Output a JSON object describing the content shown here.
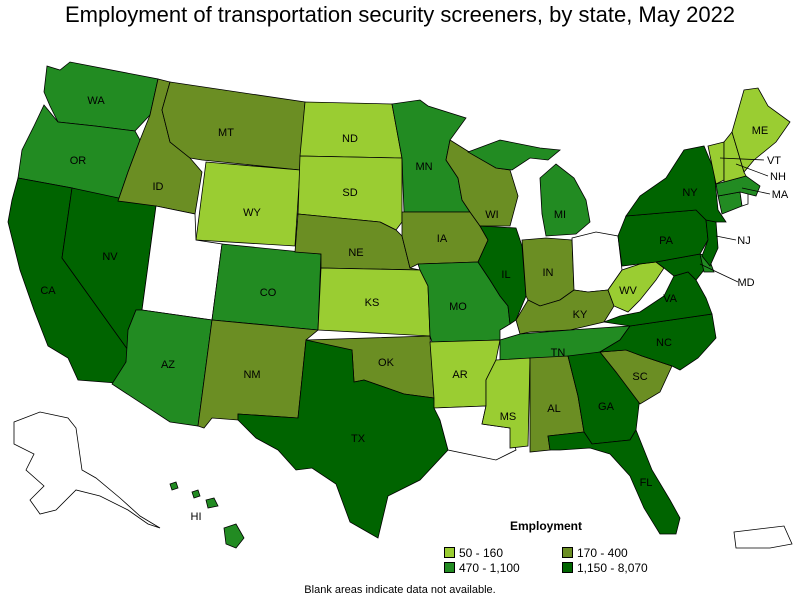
{
  "title": "Employment of transportation security screeners, by state, May 2022",
  "note": "Blank areas indicate data not available.",
  "legend": {
    "title": "Employment",
    "items": [
      {
        "label": "50 - 160",
        "color": "#9ACD32"
      },
      {
        "label": "170 - 400",
        "color": "#6B8E23"
      },
      {
        "label": "470 - 1,100",
        "color": "#228B22"
      },
      {
        "label": "1,150 - 8,070",
        "color": "#006400"
      }
    ]
  },
  "colors": {
    "na": "#ffffff",
    "outline": "#000000"
  },
  "states": [
    {
      "abbr": "WA",
      "cls": 2
    },
    {
      "abbr": "OR",
      "cls": 2
    },
    {
      "abbr": "CA",
      "cls": 3
    },
    {
      "abbr": "NV",
      "cls": 3
    },
    {
      "abbr": "ID",
      "cls": 1
    },
    {
      "abbr": "MT",
      "cls": 1
    },
    {
      "abbr": "WY",
      "cls": 0
    },
    {
      "abbr": "UT",
      "cls": null
    },
    {
      "abbr": "AZ",
      "cls": 2
    },
    {
      "abbr": "CO",
      "cls": 2
    },
    {
      "abbr": "NM",
      "cls": 1
    },
    {
      "abbr": "ND",
      "cls": 0
    },
    {
      "abbr": "SD",
      "cls": 0
    },
    {
      "abbr": "NE",
      "cls": 1
    },
    {
      "abbr": "KS",
      "cls": 0
    },
    {
      "abbr": "OK",
      "cls": 1
    },
    {
      "abbr": "TX",
      "cls": 3
    },
    {
      "abbr": "MN",
      "cls": 2
    },
    {
      "abbr": "IA",
      "cls": 1
    },
    {
      "abbr": "MO",
      "cls": 2
    },
    {
      "abbr": "AR",
      "cls": 0
    },
    {
      "abbr": "LA",
      "cls": null
    },
    {
      "abbr": "WI",
      "cls": 1
    },
    {
      "abbr": "IL",
      "cls": 3
    },
    {
      "abbr": "MI",
      "cls": 2
    },
    {
      "abbr": "IN",
      "cls": 1
    },
    {
      "abbr": "OH",
      "cls": null
    },
    {
      "abbr": "KY",
      "cls": 1
    },
    {
      "abbr": "TN",
      "cls": 2
    },
    {
      "abbr": "MS",
      "cls": 0
    },
    {
      "abbr": "AL",
      "cls": 1
    },
    {
      "abbr": "GA",
      "cls": 3
    },
    {
      "abbr": "FL",
      "cls": 3
    },
    {
      "abbr": "SC",
      "cls": 1
    },
    {
      "abbr": "NC",
      "cls": 3
    },
    {
      "abbr": "VA",
      "cls": 3
    },
    {
      "abbr": "WV",
      "cls": 0
    },
    {
      "abbr": "PA",
      "cls": 3
    },
    {
      "abbr": "NY",
      "cls": 3
    },
    {
      "abbr": "VT",
      "cls": 0
    },
    {
      "abbr": "NH",
      "cls": 0
    },
    {
      "abbr": "ME",
      "cls": 0
    },
    {
      "abbr": "MA",
      "cls": 2
    },
    {
      "abbr": "RI",
      "cls": null
    },
    {
      "abbr": "CT",
      "cls": 2
    },
    {
      "abbr": "NJ",
      "cls": 3
    },
    {
      "abbr": "DE",
      "cls": 2
    },
    {
      "abbr": "MD",
      "cls": 3
    },
    {
      "abbr": "AK",
      "cls": null
    },
    {
      "abbr": "HI",
      "cls": 2
    },
    {
      "abbr": "PR",
      "cls": null
    }
  ]
}
